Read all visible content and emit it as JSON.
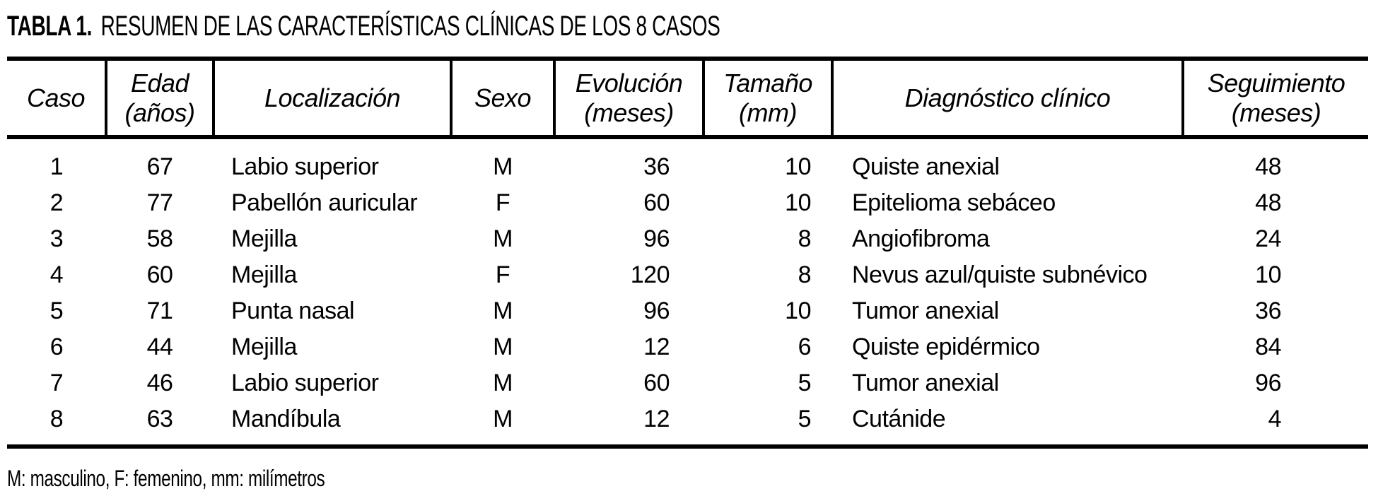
{
  "title": {
    "label": "TABLA 1.",
    "text": "RESUMEN DE LAS CARACTERÍSTICAS CLÍNICAS DE LOS 8 CASOS"
  },
  "table": {
    "columns": [
      {
        "key": "caso",
        "label": "Caso"
      },
      {
        "key": "edad",
        "label": "Edad\n(años)"
      },
      {
        "key": "localizacion",
        "label": "Localización"
      },
      {
        "key": "sexo",
        "label": "Sexo"
      },
      {
        "key": "evolucion",
        "label": "Evolución\n(meses)"
      },
      {
        "key": "tamano",
        "label": "Tamaño\n(mm)"
      },
      {
        "key": "diagnostico",
        "label": "Diagnóstico clínico"
      },
      {
        "key": "seguimiento",
        "label": "Seguimiento\n(meses)"
      }
    ],
    "rows": [
      {
        "caso": "1",
        "edad": "67",
        "localizacion": "Labio superior",
        "sexo": "M",
        "evolucion": "36",
        "tamano": "10",
        "diagnostico": "Quiste anexial",
        "seguimiento": "48"
      },
      {
        "caso": "2",
        "edad": "77",
        "localizacion": "Pabellón auricular",
        "sexo": "F",
        "evolucion": "60",
        "tamano": "10",
        "diagnostico": "Epitelioma sebáceo",
        "seguimiento": "48"
      },
      {
        "caso": "3",
        "edad": "58",
        "localizacion": "Mejilla",
        "sexo": "M",
        "evolucion": "96",
        "tamano": "8",
        "diagnostico": "Angiofibroma",
        "seguimiento": "24"
      },
      {
        "caso": "4",
        "edad": "60",
        "localizacion": "Mejilla",
        "sexo": "F",
        "evolucion": "120",
        "tamano": "8",
        "diagnostico": "Nevus azul/quiste subnévico",
        "seguimiento": "10"
      },
      {
        "caso": "5",
        "edad": "71",
        "localizacion": "Punta nasal",
        "sexo": "M",
        "evolucion": "96",
        "tamano": "10",
        "diagnostico": "Tumor anexial",
        "seguimiento": "36"
      },
      {
        "caso": "6",
        "edad": "44",
        "localizacion": "Mejilla",
        "sexo": "M",
        "evolucion": "12",
        "tamano": "6",
        "diagnostico": "Quiste epidérmico",
        "seguimiento": "84"
      },
      {
        "caso": "7",
        "edad": "46",
        "localizacion": "Labio superior",
        "sexo": "M",
        "evolucion": "60",
        "tamano": "5",
        "diagnostico": "Tumor anexial",
        "seguimiento": "96"
      },
      {
        "caso": "8",
        "edad": "63",
        "localizacion": "Mandíbula",
        "sexo": "M",
        "evolucion": "12",
        "tamano": "5",
        "diagnostico": "Cutánide",
        "seguimiento": "4"
      }
    ]
  },
  "footnote": "M: masculino, F: femenino, mm: milímetros",
  "colors": {
    "text": "#000000",
    "background": "#ffffff",
    "rule": "#000000"
  }
}
